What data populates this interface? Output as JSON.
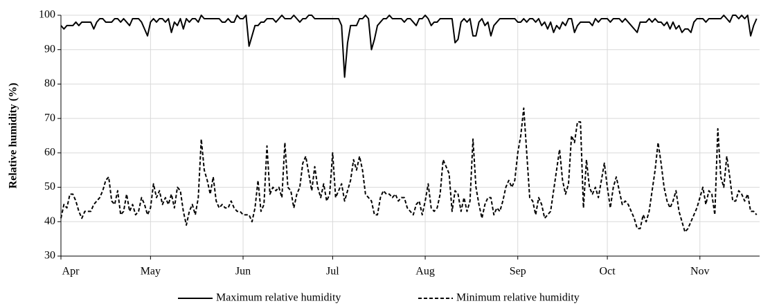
{
  "chart_data": {
    "type": "line",
    "y_label": "Relative humidity (%)",
    "x": [
      0,
      1,
      2,
      3,
      4,
      5,
      6,
      7,
      8,
      9,
      10,
      11,
      12,
      13,
      14,
      15,
      16,
      17,
      18,
      19,
      20,
      21,
      22,
      23,
      24,
      25,
      26,
      27,
      28,
      29,
      30,
      31,
      32,
      33,
      34,
      35,
      36,
      37,
      38,
      39,
      40,
      41,
      42,
      43,
      44,
      45,
      46,
      47,
      48,
      49,
      50,
      51,
      52,
      53,
      54,
      55,
      56,
      57,
      58,
      59,
      60,
      61,
      62,
      63,
      64,
      65,
      66,
      67,
      68,
      69,
      70,
      71,
      72,
      73,
      74,
      75,
      76,
      77,
      78,
      79,
      80,
      81,
      82,
      83,
      84,
      85,
      86,
      87,
      88,
      89,
      90,
      91,
      92,
      93,
      94,
      95,
      96,
      97,
      98,
      99,
      100,
      101,
      102,
      103,
      104,
      105,
      106,
      107,
      108,
      109,
      110,
      111,
      112,
      113,
      114,
      115,
      116,
      117,
      118,
      119,
      120,
      121,
      122,
      123,
      124,
      125,
      126,
      127,
      128,
      129,
      130,
      131,
      132,
      133,
      134,
      135,
      136,
      137,
      138,
      139,
      140,
      141,
      142,
      143,
      144,
      145,
      146,
      147,
      148,
      149,
      150,
      151,
      152,
      153,
      154,
      155,
      156,
      157,
      158,
      159,
      160,
      161,
      162,
      163,
      164,
      165,
      166,
      167,
      168,
      169,
      170,
      171,
      172,
      173,
      174,
      175,
      176,
      177,
      178,
      179,
      180,
      181,
      182,
      183,
      184,
      185,
      186,
      187,
      188,
      189,
      190,
      191,
      192,
      193,
      194,
      195,
      196,
      197,
      198,
      199,
      200,
      201,
      202,
      203,
      204,
      205,
      206,
      207,
      208,
      209,
      210,
      211,
      212,
      213,
      214,
      215,
      216,
      217,
      218,
      219,
      220,
      221,
      222,
      223,
      224,
      225,
      226,
      227,
      228,
      229,
      230,
      231,
      232,
      233
    ],
    "series": [
      {
        "name": "Maximum relative humidity",
        "color": "#000000",
        "dash": "solid",
        "values": [
          97,
          96,
          97,
          97,
          97,
          98,
          97,
          98,
          98,
          98,
          98,
          96,
          98,
          99,
          99,
          98,
          98,
          98,
          99,
          99,
          98,
          99,
          98,
          97,
          99,
          99,
          99,
          98,
          96,
          94,
          98,
          99,
          98,
          99,
          99,
          98,
          99,
          95,
          98,
          97,
          99,
          96,
          99,
          98,
          99,
          99,
          98,
          100,
          99,
          99,
          99,
          99,
          99,
          99,
          98,
          98,
          99,
          98,
          98,
          100,
          99,
          99,
          100,
          91,
          94,
          97,
          97,
          98,
          98,
          99,
          99,
          99,
          98,
          99,
          100,
          99,
          99,
          99,
          100,
          99,
          98,
          99,
          99,
          100,
          100,
          99,
          99,
          99,
          99,
          99,
          99,
          99,
          99,
          99,
          97,
          82,
          92,
          97,
          97,
          97,
          99,
          99,
          100,
          99,
          90,
          93,
          97,
          98,
          99,
          99,
          100,
          99,
          99,
          99,
          99,
          98,
          99,
          99,
          98,
          97,
          99,
          99,
          100,
          99,
          97,
          98,
          98,
          99,
          99,
          99,
          99,
          99,
          92,
          93,
          98,
          99,
          98,
          99,
          94,
          94,
          98,
          99,
          97,
          98,
          94,
          97,
          98,
          99,
          99,
          99,
          99,
          99,
          99,
          98,
          98,
          99,
          98,
          99,
          99,
          98,
          99,
          97,
          98,
          96,
          98,
          95,
          97,
          96,
          98,
          97,
          99,
          99,
          95,
          97,
          98,
          98,
          98,
          98,
          97,
          99,
          98,
          99,
          99,
          99,
          98,
          99,
          99,
          99,
          98,
          99,
          98,
          97,
          96,
          95,
          98,
          98,
          98,
          99,
          98,
          99,
          98,
          98,
          97,
          98,
          96,
          98,
          96,
          97,
          95,
          96,
          96,
          95,
          98,
          99,
          99,
          99,
          98,
          99,
          99,
          99,
          99,
          99,
          100,
          99,
          98,
          100,
          100,
          99,
          100,
          99,
          100,
          94,
          97,
          99
        ]
      },
      {
        "name": "Minimum relative humidity",
        "color": "#000000",
        "dash": "dashed",
        "values": [
          41,
          45,
          44,
          48,
          48,
          46,
          43,
          41,
          43,
          43,
          43,
          45,
          46,
          47,
          49,
          52,
          53,
          46,
          45,
          49,
          42,
          43,
          48,
          43,
          45,
          42,
          43,
          47,
          45,
          42,
          44,
          51,
          47,
          49,
          45,
          47,
          45,
          48,
          44,
          50,
          49,
          43,
          39,
          43,
          45,
          42,
          47,
          64,
          55,
          52,
          48,
          53,
          46,
          44,
          45,
          44,
          44,
          46,
          44,
          43,
          43,
          42,
          42,
          42,
          40,
          44,
          52,
          43,
          45,
          62,
          48,
          50,
          49,
          50,
          47,
          63,
          50,
          49,
          44,
          48,
          50,
          57,
          59,
          54,
          49,
          56,
          50,
          47,
          51,
          46,
          48,
          60,
          47,
          49,
          51,
          46,
          49,
          52,
          58,
          55,
          59,
          55,
          48,
          47,
          46,
          42,
          42,
          47,
          49,
          48,
          48,
          47,
          48,
          46,
          47,
          47,
          44,
          43,
          42,
          45,
          46,
          42,
          46,
          51,
          44,
          43,
          44,
          48,
          58,
          56,
          54,
          43,
          49,
          48,
          43,
          47,
          43,
          46,
          64,
          50,
          45,
          41,
          45,
          47,
          47,
          42,
          44,
          43,
          46,
          50,
          52,
          50,
          52,
          60,
          65,
          73,
          60,
          47,
          46,
          42,
          47,
          45,
          41,
          42,
          43,
          49,
          55,
          61,
          52,
          48,
          51,
          65,
          63,
          69,
          69,
          44,
          58,
          50,
          48,
          50,
          47,
          52,
          57,
          50,
          44,
          50,
          53,
          49,
          45,
          46,
          45,
          43,
          41,
          38,
          38,
          42,
          40,
          43,
          49,
          55,
          63,
          57,
          50,
          46,
          44,
          46,
          49,
          43,
          40,
          37,
          38,
          40,
          42,
          44,
          47,
          50,
          45,
          49,
          48,
          42,
          67,
          53,
          50,
          59,
          53,
          46,
          46,
          49,
          48,
          46,
          48,
          43,
          43,
          42
        ]
      }
    ],
    "xlim": [
      0,
      234
    ],
    "xticks": [
      {
        "value": 0,
        "label": "Apr"
      },
      {
        "value": 30,
        "label": "May"
      },
      {
        "value": 61,
        "label": "Jun"
      },
      {
        "value": 91,
        "label": "Jul"
      },
      {
        "value": 122,
        "label": "Aug"
      },
      {
        "value": 153,
        "label": "Sep"
      },
      {
        "value": 183,
        "label": "Oct"
      },
      {
        "value": 214,
        "label": "Nov"
      }
    ],
    "ylim": [
      30,
      100
    ],
    "yticks": [
      30,
      40,
      50,
      60,
      70,
      80,
      90,
      100
    ],
    "grid": true,
    "legend": "bottom"
  }
}
